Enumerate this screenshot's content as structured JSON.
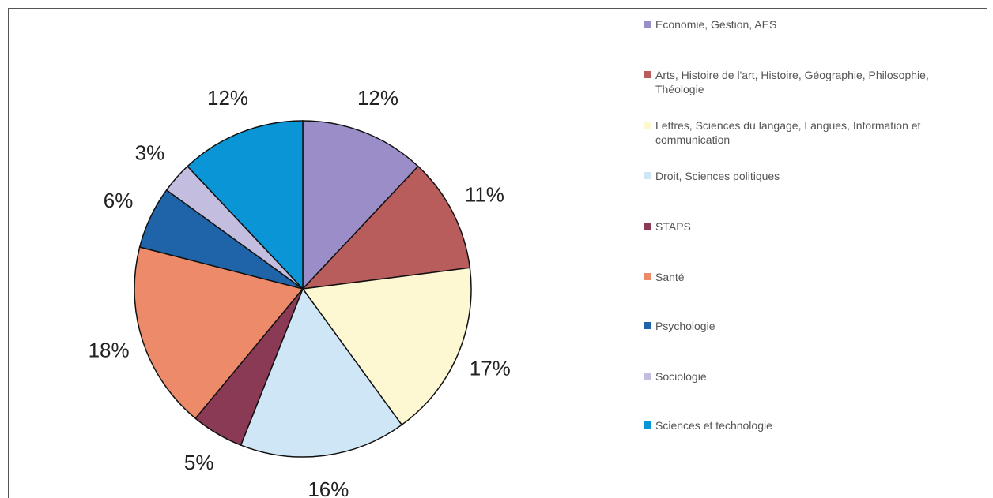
{
  "chart_data": {
    "type": "pie",
    "categories": [
      "Economie, Gestion, AES",
      "Arts, Histoire de l'art, Histoire, Géographie, Philosophie, Théologie",
      "Lettres, Sciences du langage, Langues, Information et communication",
      "Droit, Sciences politiques",
      "STAPS",
      "Santé",
      "Psychologie",
      "Sociologie",
      "Sciences et technologie"
    ],
    "values": [
      12,
      11,
      17,
      16,
      5,
      18,
      6,
      3,
      12
    ],
    "value_labels": [
      "12%",
      "11%",
      "17%",
      "16%",
      "5%",
      "18%",
      "6%",
      "3%",
      "12%"
    ],
    "colors": [
      "#9b8ec8",
      "#b85c5c",
      "#fdf8d2",
      "#cfe6f7",
      "#8b3a55",
      "#ec8a6a",
      "#1f64a8",
      "#c3bde0",
      "#0a96d6"
    ],
    "legend": "right"
  }
}
